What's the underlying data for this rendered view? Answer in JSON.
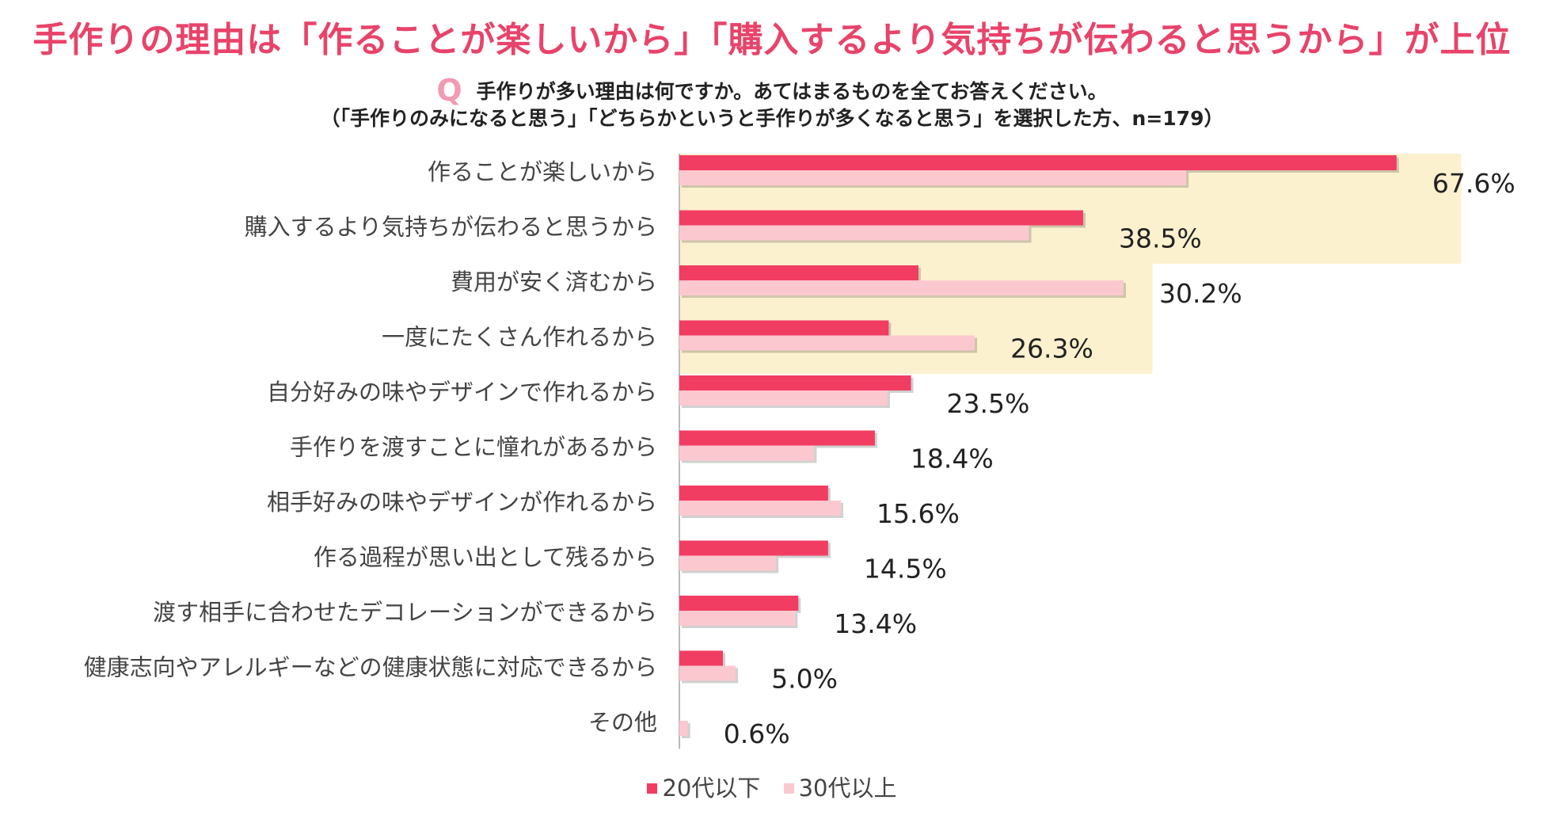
{
  "header": {
    "title": "手作りの理由は「作ることが楽しいから」「購入するより気持ちが伝わると思うから」が上位",
    "q_mark": "Q",
    "question": "手作りが多い理由は何ですか。あてはまるものを全てお答えください。",
    "condition": "（「手作りのみになると思う」「どちらかというと手作りが多くなると思う」を選択した方、n=179）"
  },
  "colors": {
    "series1": "#f23d63",
    "series2": "#fbc8d0",
    "highlight": "#fcf1cf",
    "axis": "#bbbbbb"
  },
  "chart_data": {
    "type": "bar",
    "orientation": "horizontal",
    "categories": [
      "作ることが楽しいから",
      "購入するより気持ちが伝わると思うから",
      "費用が安く済むから",
      "一度にたくさん作れるから",
      "自分好みの味やデザインで作れるから",
      "手作りを渡すことに憧れがあるから",
      "相手好みの味やデザインが作れるから",
      "作る過程が思い出として残るから",
      "渡す相手に合わせたデコレーションができるから",
      "健康志向やアレルギーなどの健康状態に対応できるから",
      "その他"
    ],
    "series": [
      {
        "name": "20代以下",
        "values": [
          67.5,
          38.0,
          22.5,
          19.7,
          21.8,
          18.4,
          14.0,
          14.0,
          11.2,
          4.1,
          0
        ]
      },
      {
        "name": "30代以上",
        "values": [
          47.7,
          32.9,
          41.8,
          27.8,
          19.6,
          12.7,
          15.2,
          9.1,
          10.9,
          5.3,
          0.8
        ]
      }
    ],
    "value_labels": [
      "67.6%",
      "38.5%",
      "30.2%",
      "26.3%",
      "23.5%",
      "18.4%",
      "15.6%",
      "14.5%",
      "13.4%",
      "5.0%",
      "0.6%"
    ],
    "highlight_groups": [
      [
        0,
        1
      ],
      [
        2,
        3
      ]
    ],
    "xlim": [
      0,
      70
    ],
    "legend": [
      "20代以下",
      "30代以上"
    ],
    "legend_position": "bottom"
  }
}
